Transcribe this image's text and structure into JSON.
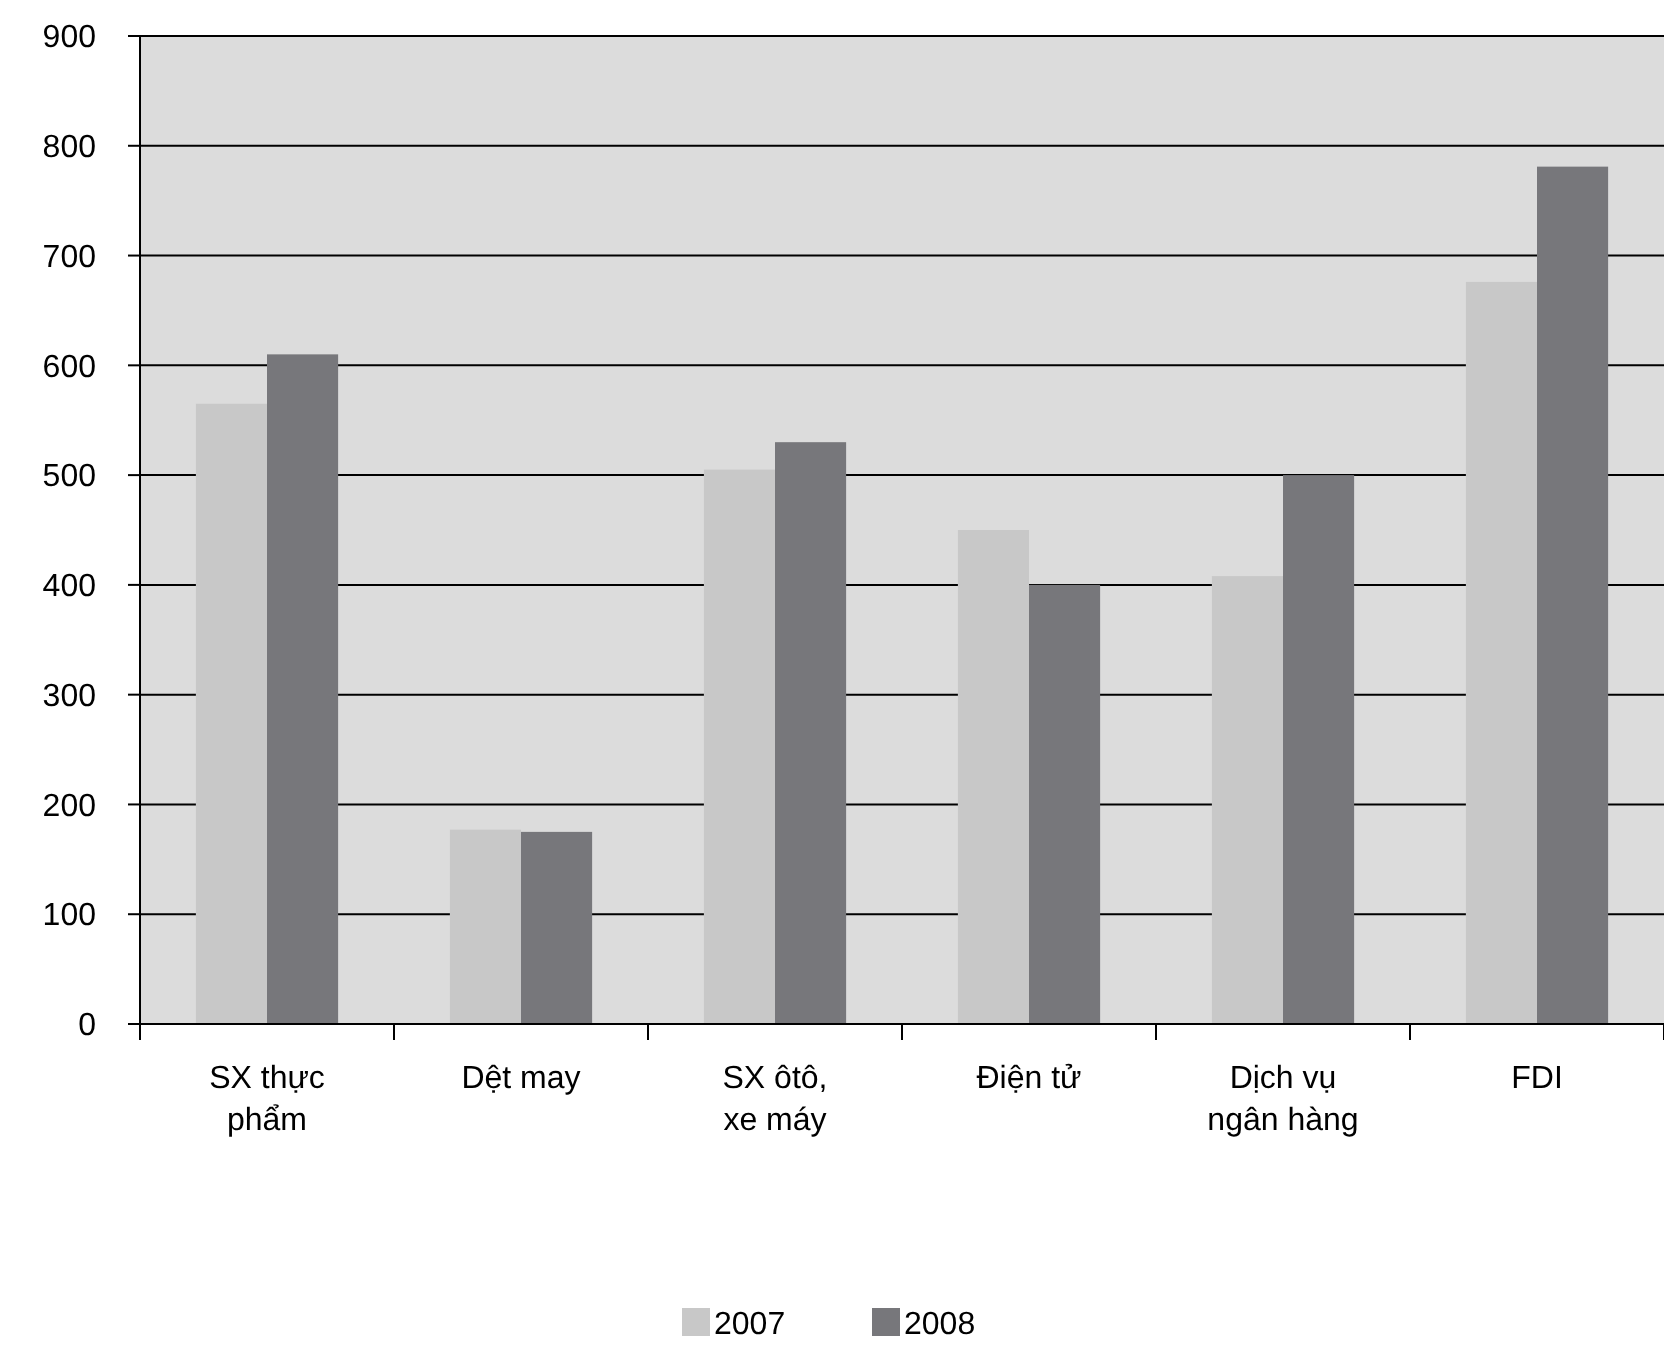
{
  "chart_data": {
    "type": "bar",
    "categories": [
      "SX thực phẩm",
      "Dệt may",
      "SX ôtô, xe máy",
      "Điện tử",
      "Dịch vụ ngân hàng",
      "FDI"
    ],
    "series": [
      {
        "name": "2007",
        "color": "#c8c8c8",
        "values": [
          565,
          177,
          505,
          450,
          408,
          676
        ]
      },
      {
        "name": "2008",
        "color": "#77777b",
        "values": [
          610,
          175,
          530,
          400,
          500,
          781
        ]
      }
    ],
    "ylim": [
      0,
      900
    ],
    "yticks": [
      0,
      100,
      200,
      300,
      400,
      500,
      600,
      700,
      800,
      900
    ],
    "grid": "y",
    "legend": "bottom"
  }
}
